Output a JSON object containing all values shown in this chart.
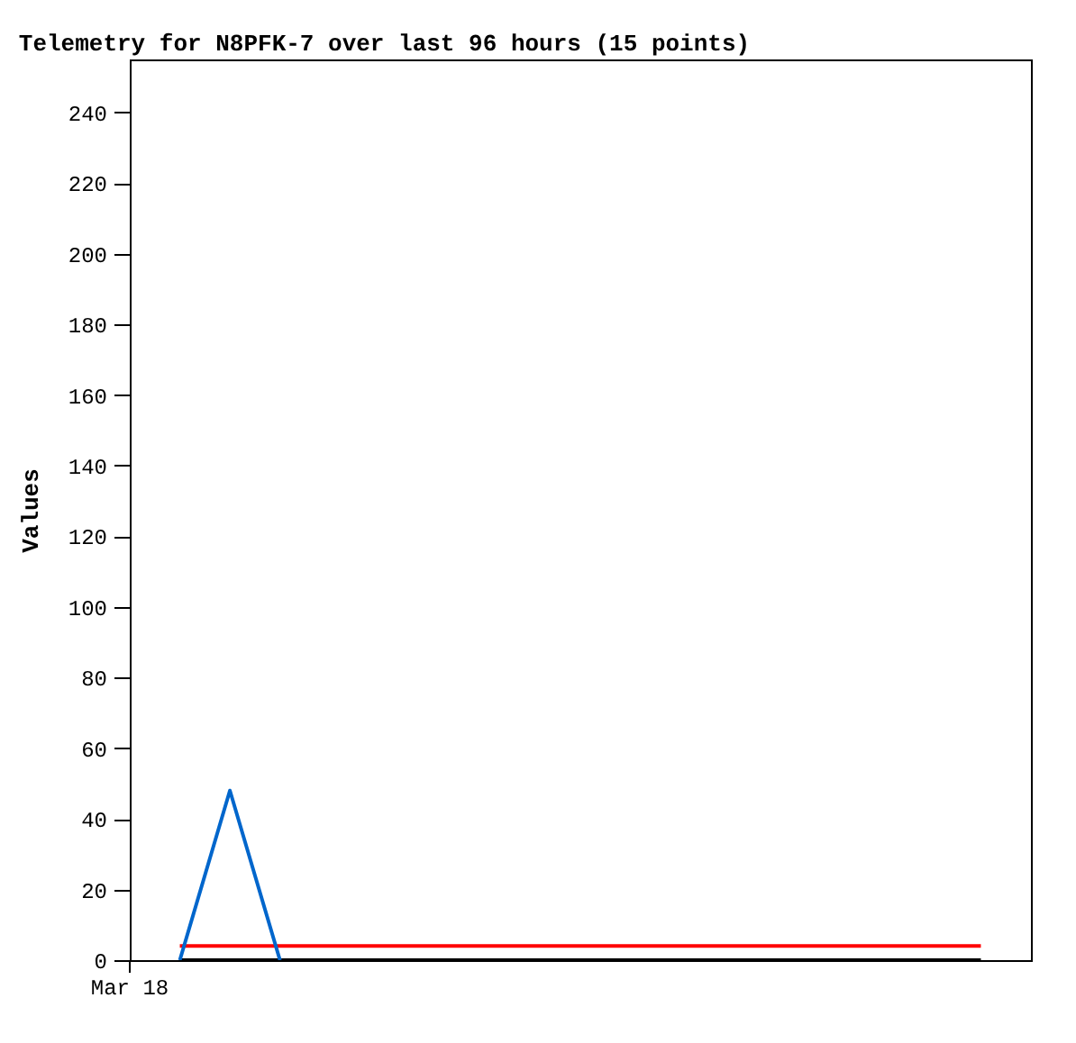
{
  "chart_data": {
    "type": "line",
    "title": "Telemetry for N8PFK-7 over last 96 hours (15 points)",
    "ylabel": "Values",
    "annotations": [
      "Mar 18"
    ],
    "categories": [
      null,
      null,
      null,
      null,
      null,
      null,
      null,
      null,
      null,
      null,
      null,
      null,
      null,
      null,
      null,
      null,
      null
    ],
    "ylim": [
      0,
      255
    ],
    "yticks": [
      0,
      20,
      40,
      60,
      80,
      100,
      120,
      140,
      160,
      180,
      200,
      220,
      240
    ],
    "grid": false,
    "marker": "none",
    "line_style": "solid",
    "series": [
      {
        "color": "#000000",
        "values": [
          0,
          0,
          0,
          0,
          0,
          0,
          0,
          0,
          0,
          0,
          0,
          0,
          0,
          0,
          0,
          0,
          0
        ]
      },
      {
        "color": "#ff0000",
        "values": [
          4,
          4,
          4,
          4,
          4,
          4,
          4,
          4,
          4,
          4,
          4,
          4,
          4,
          4,
          4,
          4,
          4
        ]
      },
      {
        "color": "#0066cc",
        "values": [
          0,
          48,
          0,
          null,
          null,
          null,
          null,
          null,
          null,
          null,
          null,
          null,
          null,
          null,
          null,
          null,
          null
        ]
      }
    ]
  }
}
